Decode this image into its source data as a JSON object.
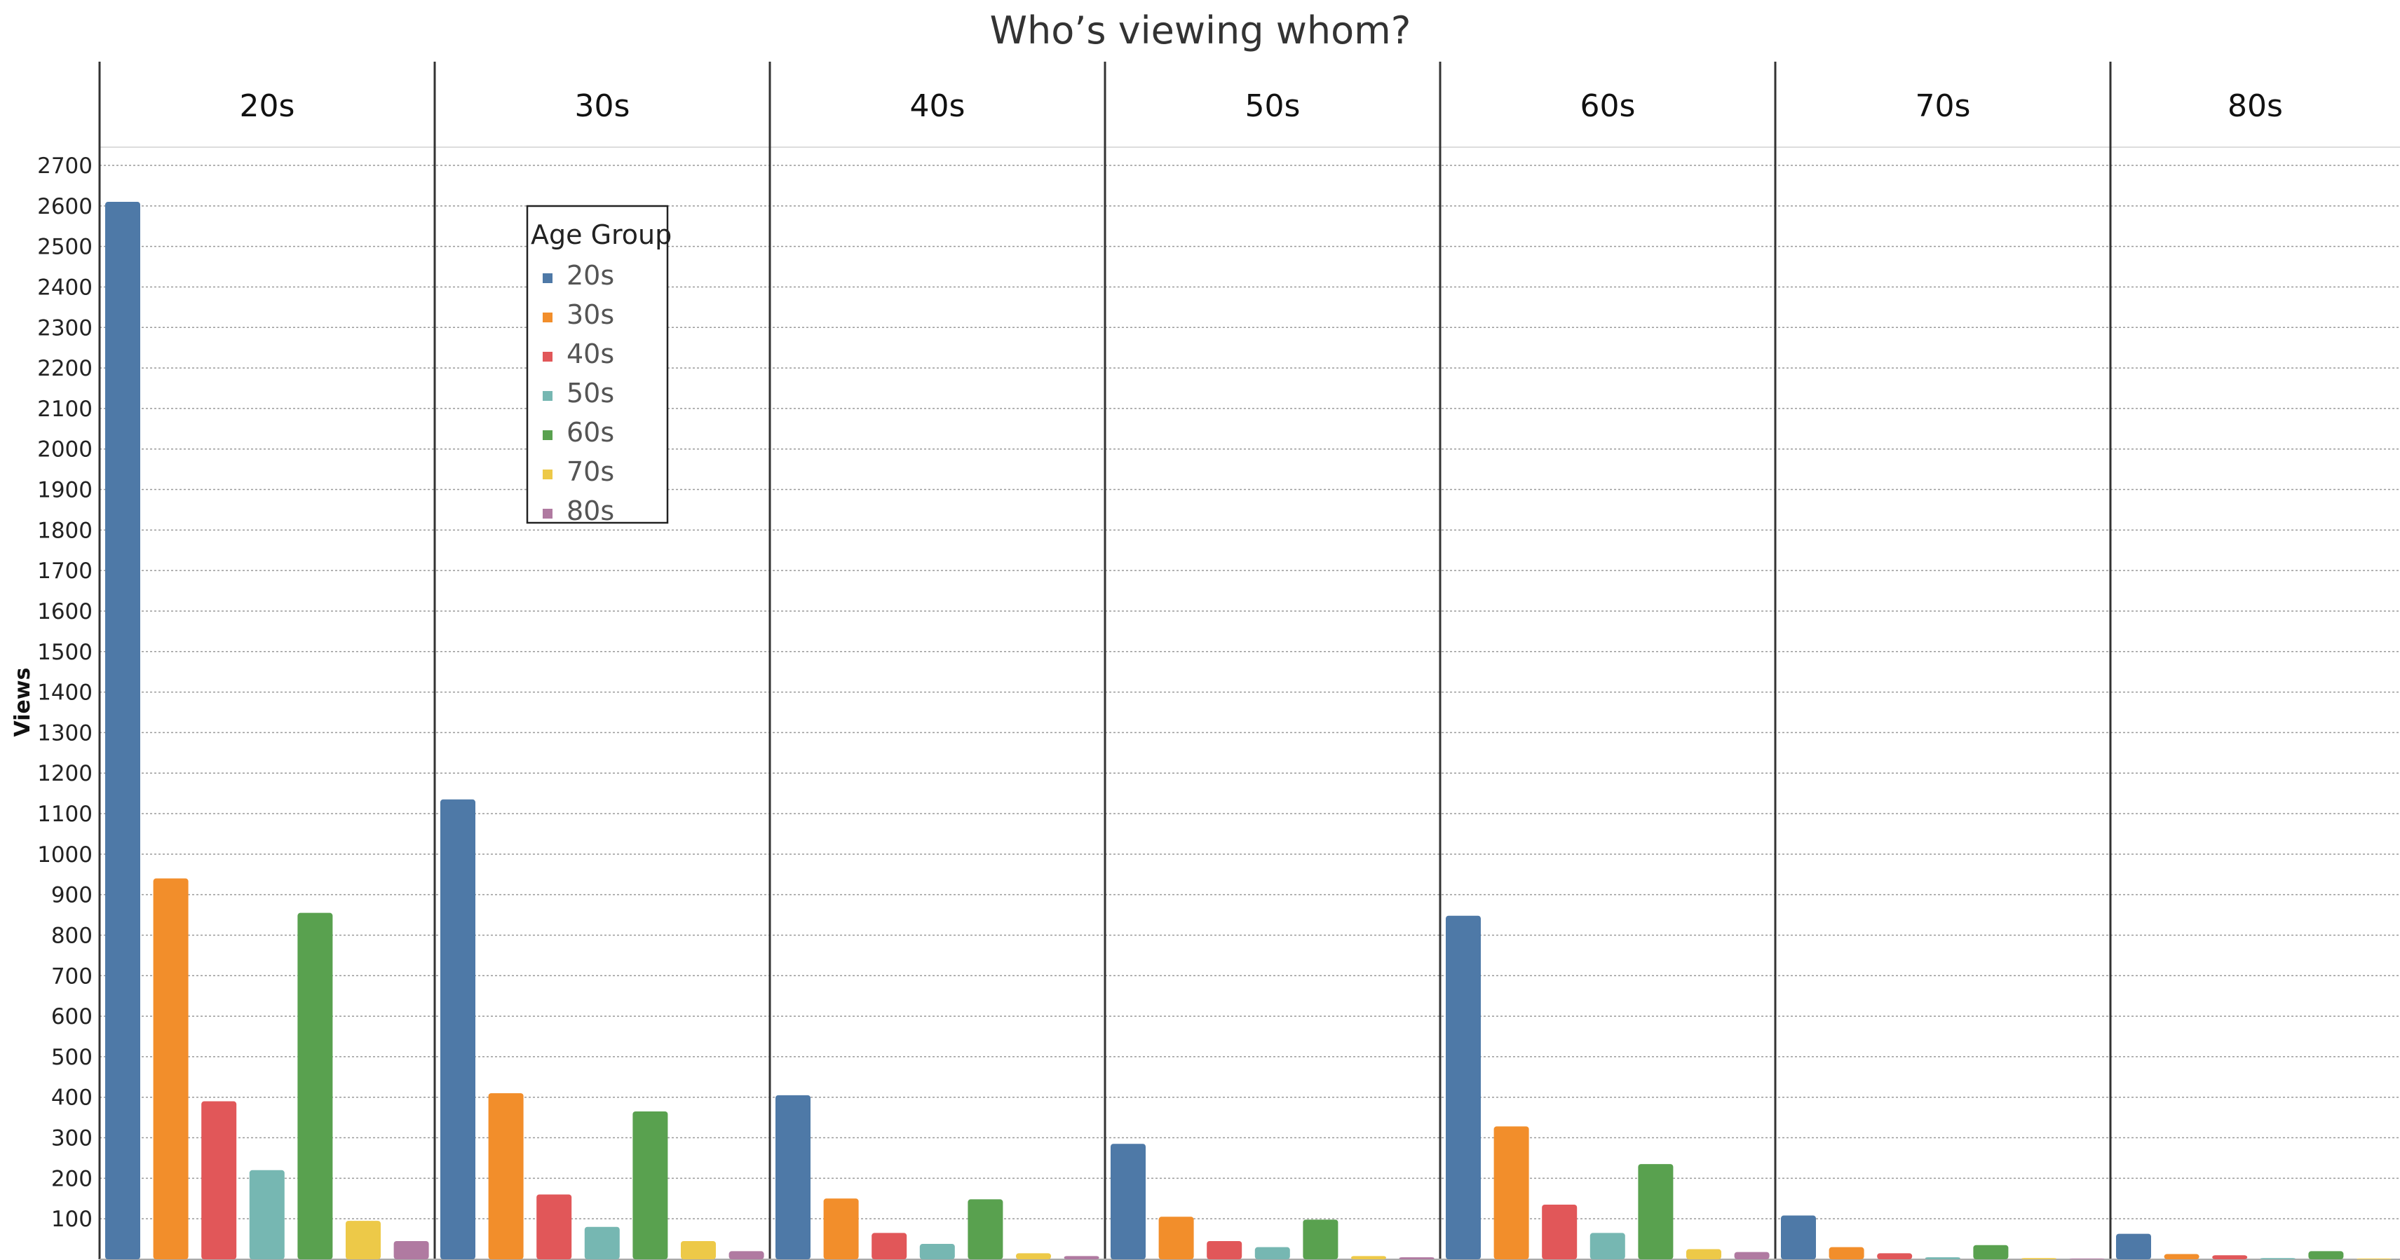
{
  "chart_data": {
    "type": "bar",
    "title": "Who’s viewing whom?",
    "ylabel": "Views",
    "ylim": [
      0,
      2700
    ],
    "yticks": [
      100,
      200,
      300,
      400,
      500,
      600,
      700,
      800,
      900,
      1000,
      1100,
      1200,
      1300,
      1400,
      1500,
      1600,
      1700,
      1800,
      1900,
      2000,
      2100,
      2200,
      2300,
      2400,
      2500,
      2600,
      2700
    ],
    "grid": true,
    "legend_placement": "top-left",
    "legend_title": "Age Group",
    "panels": [
      "20s",
      "30s",
      "40s",
      "50s",
      "60s",
      "70s",
      "80s"
    ],
    "categories": [
      "20s",
      "30s",
      "40s",
      "50s",
      "60s",
      "70s",
      "80s"
    ],
    "colors": [
      "#4e79a7",
      "#f28e2b",
      "#e15759",
      "#76b7b2",
      "#59a14f",
      "#edc948",
      "#b07aa1"
    ],
    "series": [
      {
        "panel": "20s",
        "values": [
          2610,
          940,
          390,
          220,
          855,
          95,
          45
        ]
      },
      {
        "panel": "30s",
        "values": [
          1135,
          410,
          160,
          80,
          365,
          45,
          20
        ]
      },
      {
        "panel": "40s",
        "values": [
          405,
          150,
          65,
          38,
          148,
          15,
          8
        ]
      },
      {
        "panel": "50s",
        "values": [
          285,
          105,
          45,
          30,
          98,
          8,
          5
        ]
      },
      {
        "panel": "60s",
        "values": [
          848,
          328,
          135,
          65,
          235,
          25,
          18
        ]
      },
      {
        "panel": "70s",
        "values": [
          108,
          30,
          15,
          5,
          35,
          3,
          2
        ]
      },
      {
        "panel": "80s",
        "values": [
          63,
          13,
          10,
          3,
          20,
          2,
          2
        ]
      }
    ]
  }
}
